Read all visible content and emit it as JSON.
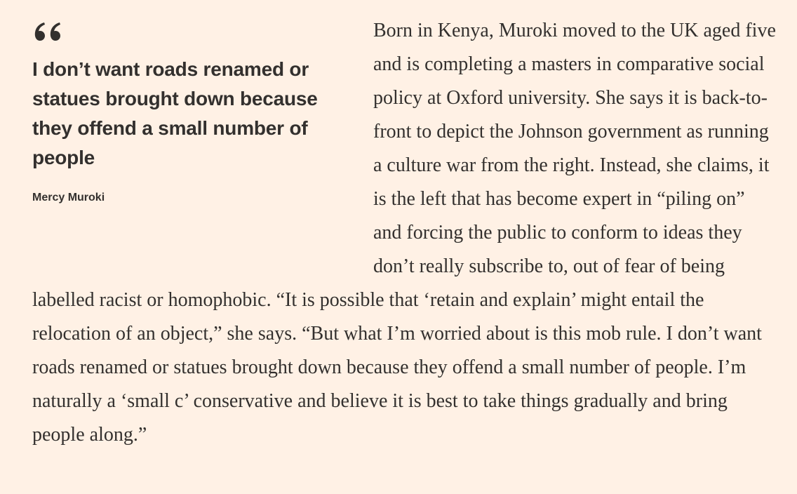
{
  "pullquote": {
    "icon": "quote-mark-icon",
    "text": "I don’t want roads renamed or statues brought down because they offend a small number of people",
    "attribution": "Mercy Muroki"
  },
  "article": {
    "paragraph": "Born in Kenya, Muroki moved to the UK aged five and is completing a masters in comparative social policy at Oxford university. She says it is back-to-front to depict the Johnson government as running a culture war from the right. Instead, she claims, it is the left that has become expert in “piling on” and forcing the public to conform to ideas they don’t really subscribe to, out of fear of being labelled racist or homophobic. “It is possible that ‘retain and explain’ might entail the relocation of an object,” she says. “But what I’m worried about is this mob rule. I don’t want roads renamed or statues brought down because they offend a small number of people. I’m naturally a ‘small c’ conservative and believe it is best to take things gradually and bring people along.”"
  },
  "colors": {
    "background": "#fff1e5",
    "text": "#33302e"
  }
}
